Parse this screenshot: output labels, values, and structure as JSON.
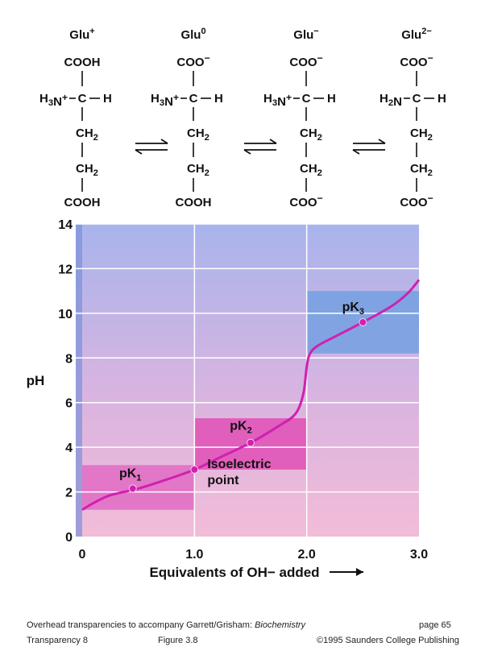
{
  "species": [
    {
      "name": "Glu",
      "charge": "+",
      "top": "COOH",
      "amine": "H3N+",
      "bottom": "COOH"
    },
    {
      "name": "Glu",
      "charge": "0",
      "top": "COO−",
      "amine": "H3N+",
      "bottom": "COOH"
    },
    {
      "name": "Glu",
      "charge": "−",
      "top": "COO−",
      "amine": "H3N+",
      "bottom": "COO−"
    },
    {
      "name": "Glu",
      "charge": "2−",
      "top": "COO−",
      "amine": "H2N",
      "bottom": "COO−"
    }
  ],
  "chem": {
    "c": "C",
    "h": "H",
    "ch2": "CH2"
  },
  "chart_data": {
    "type": "line",
    "xlabel": "Equivalents of OH− added",
    "ylabel": "pH",
    "xlim": [
      0,
      3.0
    ],
    "ylim": [
      0,
      14
    ],
    "x_ticks": [
      "0",
      "1.0",
      "2.0",
      "3.0"
    ],
    "y_ticks": [
      "0",
      "2",
      "4",
      "6",
      "8",
      "10",
      "12",
      "14"
    ],
    "series": [
      {
        "x": [
          0,
          0.1,
          0.25,
          0.5,
          0.75,
          1.0,
          1.25,
          1.5,
          1.75,
          1.9,
          1.97,
          2.0,
          2.03,
          2.1,
          2.25,
          2.5,
          2.75,
          2.9,
          3.0
        ],
        "y": [
          1.2,
          1.5,
          1.85,
          2.15,
          2.55,
          3.0,
          3.6,
          4.2,
          4.95,
          5.5,
          6.4,
          7.6,
          8.2,
          8.55,
          8.95,
          9.6,
          10.3,
          10.9,
          11.5
        ]
      }
    ],
    "points": [
      {
        "label": "pK1",
        "x": 0.45,
        "y": 2.15
      },
      {
        "label": "Isoelectric point",
        "x": 1.0,
        "y": 3.0
      },
      {
        "label": "pK2",
        "x": 1.5,
        "y": 4.2
      },
      {
        "label": "pK3",
        "x": 2.5,
        "y": 9.6
      }
    ],
    "buffer_regions": [
      {
        "x": [
          0,
          1.0
        ],
        "y": [
          1.2,
          3.2
        ],
        "color": "#e060c0"
      },
      {
        "x": [
          1.0,
          2.0
        ],
        "y": [
          3.0,
          5.3
        ],
        "color": "#e040b0"
      },
      {
        "x": [
          2.0,
          3.0
        ],
        "y": [
          8.2,
          11.0
        ],
        "color": "#6a9ee0"
      }
    ],
    "grid": true,
    "colors": {
      "curve": "#d020b0",
      "bg_top": "#a8b4ec",
      "bg_bottom": "#f2bcd8",
      "axis_band": "#7a90d8"
    }
  },
  "footer": {
    "line1_prefix": "Overhead transparencies to accompany Garrett/Grisham: ",
    "line1_title": "Biochemistry",
    "page": "page 65",
    "transparency": "Transparency 8",
    "figure": "Figure 3.8",
    "copyright": "©1995 Saunders College Publishing"
  }
}
